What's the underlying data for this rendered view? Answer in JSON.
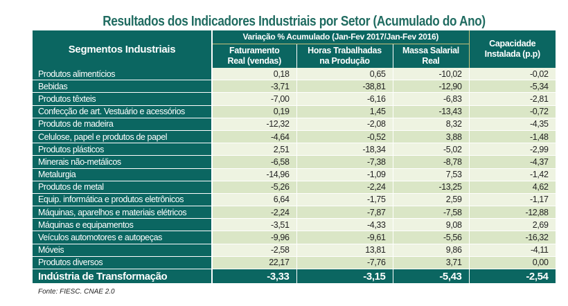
{
  "title": "Resultados dos Indicadores Industriais por Setor (Acumulado do Ano)",
  "header": {
    "segment": "Segmentos Industriais",
    "group": "Variação % Acumulado (Jan-Fev 2017/Jan-Fev 2016)",
    "col1": [
      "Faturamento",
      "Real (vendas)"
    ],
    "col2": [
      "Horas Trabalhadas",
      "na Produção"
    ],
    "col3": [
      "Massa Salarial",
      "Real"
    ],
    "col4": [
      "Capacidade",
      "Instalada (p.p)"
    ]
  },
  "rows": [
    {
      "label": "Produtos alimentícios",
      "values": [
        "0,18",
        "0,65",
        "-10,02",
        "-0,02"
      ]
    },
    {
      "label": "Bebidas",
      "values": [
        "-3,71",
        "-38,81",
        "-12,90",
        "-5,34"
      ]
    },
    {
      "label": "Produtos têxteis",
      "values": [
        "-7,00",
        "-6,16",
        "-6,83",
        "-2,81"
      ]
    },
    {
      "label": "Confecção de art. Vestuário e acessórios",
      "values": [
        "0,19",
        "1,45",
        "-13,43",
        "-0,72"
      ]
    },
    {
      "label": "Produtos de madeira",
      "values": [
        "-12,32",
        "-2,08",
        "8,32",
        "-4,35"
      ]
    },
    {
      "label": "Celulose, papel e produtos de papel",
      "values": [
        "-4,64",
        "-0,52",
        "3,88",
        "-1,48"
      ]
    },
    {
      "label": "Produtos plásticos",
      "values": [
        "2,51",
        "-18,34",
        "-5,02",
        "-2,99"
      ]
    },
    {
      "label": "Minerais não-metálicos",
      "values": [
        "-6,58",
        "-7,38",
        "-8,78",
        "-4,37"
      ]
    },
    {
      "label": "Metalurgia",
      "values": [
        "-14,96",
        "-1,09",
        "7,53",
        "-1,42"
      ]
    },
    {
      "label": "Produtos de metal",
      "values": [
        "-5,26",
        "-2,24",
        "-13,25",
        "4,62"
      ]
    },
    {
      "label": "Equip. informática e produtos eletrônicos",
      "values": [
        "6,64",
        "-1,75",
        "2,59",
        "-1,17"
      ]
    },
    {
      "label": "Máquinas, aparelhos e materiais elétricos",
      "values": [
        "-2,24",
        "-7,87",
        "-7,58",
        "-12,88"
      ]
    },
    {
      "label": "Máquinas e equipamentos",
      "values": [
        "-3,51",
        "-4,33",
        "9,08",
        "2,69"
      ]
    },
    {
      "label": "Veículos automotores e autopeças",
      "values": [
        "-9,96",
        "-9,61",
        "-5,56",
        "-16,32"
      ]
    },
    {
      "label": "Móveis",
      "values": [
        "-2,58",
        "13,81",
        "9,86",
        "-4,11"
      ]
    },
    {
      "label": "Produtos diversos",
      "values": [
        "22,17",
        "-7,76",
        "3,71",
        "0,00"
      ]
    }
  ],
  "total": {
    "label": "Indústria de Transformação",
    "values": [
      "-3,33",
      "-3,15",
      "-5,43",
      "-2,54"
    ]
  },
  "source": "Fonte: FIESC. CNAE 2.0",
  "colors": {
    "header": "#0b6661",
    "title": "#1f6b60",
    "row_light": "#eef3e1",
    "row_dark": "#dae6c6"
  }
}
